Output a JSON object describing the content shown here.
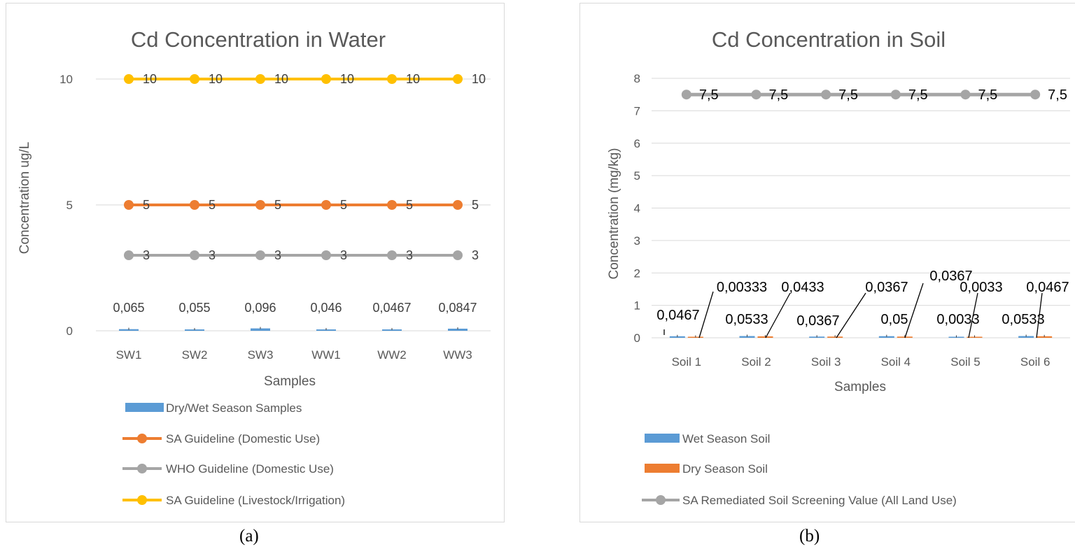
{
  "captions": {
    "a": "(a)",
    "b": "(b)"
  },
  "chart_data": [
    {
      "type": "bar",
      "title": "Cd Concentration in Water",
      "xlabel": "Samples",
      "ylabel": "Concentration ug/L",
      "categories": [
        "SW1",
        "SW2",
        "SW3",
        "WW1",
        "WW2",
        "WW3"
      ],
      "ylim": [
        0,
        12
      ],
      "yticks": [
        "0",
        "5",
        "10"
      ],
      "grid": true,
      "legend_position": "bottom",
      "series": [
        {
          "name": "Dry/Wet Season Samples",
          "kind": "bar",
          "color": "#5b9bd5",
          "values": [
            0.065,
            0.055,
            0.096,
            0.046,
            0.0467,
            0.0847
          ],
          "labels": [
            "0,065",
            "0,055",
            "0,096",
            "0,046",
            "0,0467",
            "0,0847"
          ]
        },
        {
          "name": "SA Guideline (Domestic Use)",
          "kind": "line",
          "color": "#ed7d31",
          "values": [
            5,
            5,
            5,
            5,
            5,
            5
          ],
          "labels": [
            "5",
            "5",
            "5",
            "5",
            "5",
            "5"
          ]
        },
        {
          "name": "WHO Guideline (Domestic Use)",
          "kind": "line",
          "color": "#a5a5a5",
          "values": [
            3,
            3,
            3,
            3,
            3,
            3
          ],
          "labels": [
            "3",
            "3",
            "3",
            "3",
            "3",
            "3"
          ]
        },
        {
          "name": "SA Guideline (Livestock/Irrigation)",
          "kind": "line",
          "color": "#ffc000",
          "values": [
            10,
            10,
            10,
            10,
            10,
            10
          ],
          "labels": [
            "10",
            "10",
            "10",
            "10",
            "10",
            "10"
          ]
        }
      ]
    },
    {
      "type": "bar",
      "title": "Cd Concentration in Soil",
      "xlabel": "Samples",
      "ylabel": "Concentration (mg/kg)",
      "categories": [
        "Soil 1",
        "Soil 2",
        "Soil 3",
        "Soil 4",
        "Soil 5",
        "Soil 6"
      ],
      "ylim": [
        0,
        8
      ],
      "yticks": [
        "0",
        "1",
        "2",
        "3",
        "4",
        "5",
        "6",
        "7",
        "8"
      ],
      "grid": true,
      "legend_position": "bottom",
      "series": [
        {
          "name": "Wet Season Soil",
          "kind": "bar",
          "color": "#5b9bd5",
          "values": [
            0.0467,
            0.0533,
            0.0367,
            0.05,
            0.0033,
            0.0533
          ],
          "labels": [
            "0,0467",
            "0,0533",
            "0,0367",
            "0,05",
            "0,0033",
            "0,0533"
          ]
        },
        {
          "name": "Dry Season Soil",
          "kind": "bar",
          "color": "#ed7d31",
          "values": [
            0.00333,
            0.0433,
            0.0367,
            0.0367,
            0.0033,
            0.0467
          ],
          "labels": [
            "0,00333",
            "0,0433",
            "0,0367",
            "0,0367",
            "0,0033",
            "0,0467"
          ]
        },
        {
          "name": "SA Remediated Soil Screening Value (All Land Use)",
          "kind": "line",
          "color": "#a5a5a5",
          "values": [
            7.5,
            7.5,
            7.5,
            7.5,
            7.5,
            7.5
          ],
          "labels": [
            "7,5",
            "7,5",
            "7,5",
            "7,5",
            "7,5",
            "7,5"
          ]
        }
      ]
    }
  ]
}
